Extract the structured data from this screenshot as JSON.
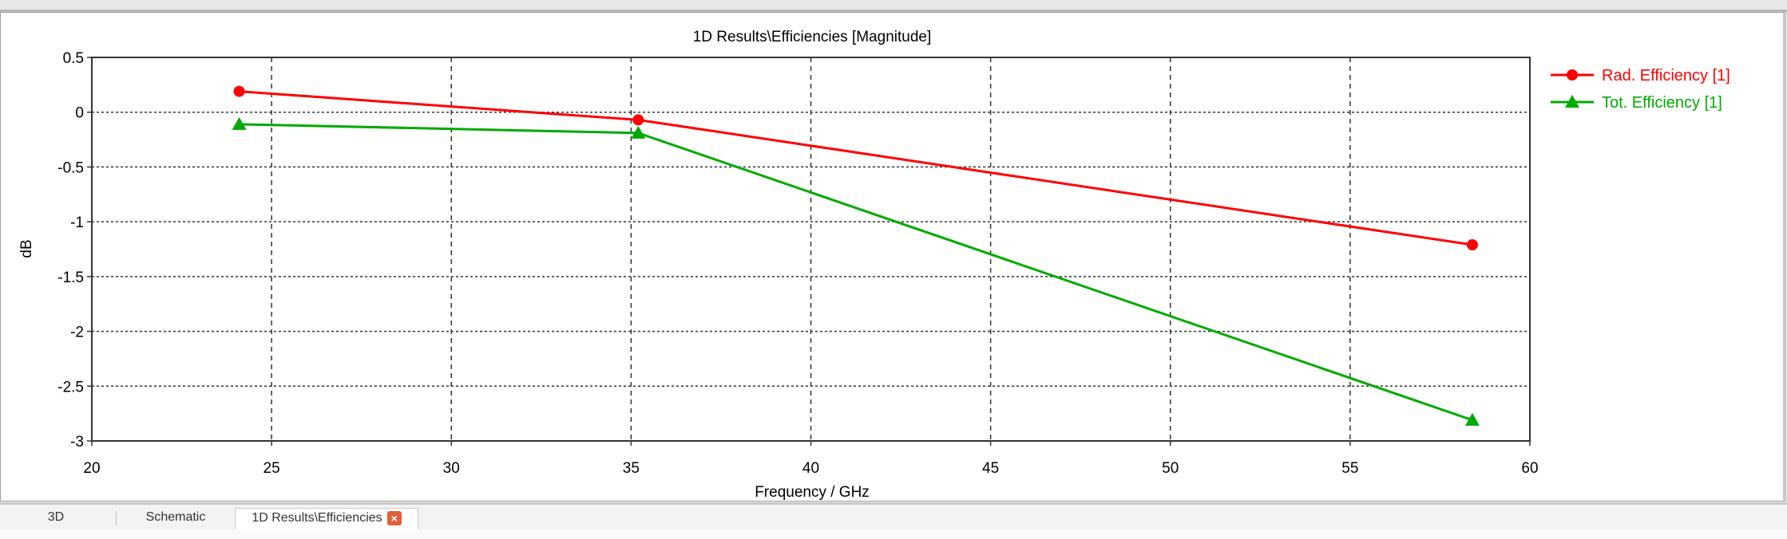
{
  "tabs": [
    {
      "label": "3D"
    },
    {
      "label": "Schematic"
    },
    {
      "label": "1D Results\\Efficiencies",
      "active": true,
      "close_icon": "close-icon"
    }
  ],
  "chart_data": {
    "type": "line",
    "title": "1D Results\\Efficiencies [Magnitude]",
    "xlabel": "Frequency / GHz",
    "ylabel": "dB",
    "xlim": [
      20,
      60
    ],
    "ylim": [
      -3,
      0.5
    ],
    "xticks": [
      20,
      25,
      30,
      35,
      40,
      45,
      50,
      55,
      60
    ],
    "yticks": [
      0.5,
      0,
      -0.5,
      -1,
      -1.5,
      -2,
      -2.5,
      -3
    ],
    "grid": true,
    "legend_position": "right",
    "series": [
      {
        "name": "Rad. Efficiency [1]",
        "color": "#ff0000",
        "marker": "circle",
        "x": [
          24.1,
          35.2,
          58.4
        ],
        "y": [
          0.19,
          -0.07,
          -1.21
        ]
      },
      {
        "name": "Tot. Efficiency [1]",
        "color": "#00aa00",
        "marker": "triangle",
        "x": [
          24.1,
          35.2,
          58.4
        ],
        "y": [
          -0.11,
          -0.19,
          -2.81
        ]
      }
    ]
  }
}
